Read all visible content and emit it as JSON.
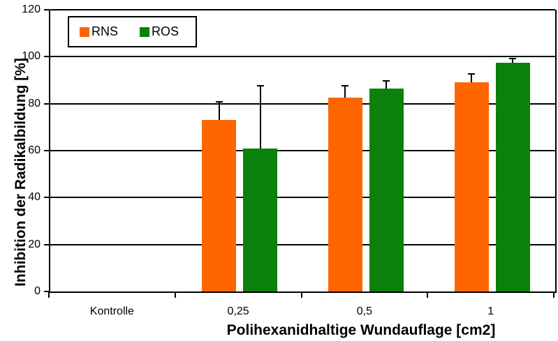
{
  "chart_data": {
    "type": "bar",
    "title": "",
    "xlabel": "Polihexanidhaltige Wundauflage [cm2]",
    "ylabel": "Inhibition der Radikalbildung [%]",
    "categories": [
      "Kontrolle",
      "0,25",
      "0,5",
      "1"
    ],
    "series": [
      {
        "name": "RNS",
        "color": "#ff6600",
        "values": [
          0,
          73,
          82.5,
          89
        ],
        "errors_plus": [
          0,
          8,
          5.5,
          4
        ]
      },
      {
        "name": "ROS",
        "color": "#0b800b",
        "values": [
          0,
          61,
          86.5,
          97.5
        ],
        "errors_plus": [
          0,
          27,
          3.5,
          2
        ]
      }
    ],
    "ylim": [
      0,
      120
    ],
    "yticks": [
      0,
      20,
      40,
      60,
      80,
      100,
      120
    ],
    "grid": "horizontal",
    "legend_position": "top-left",
    "error_bars": "upper",
    "bar_border": "none",
    "background_color": "#ffffff"
  }
}
